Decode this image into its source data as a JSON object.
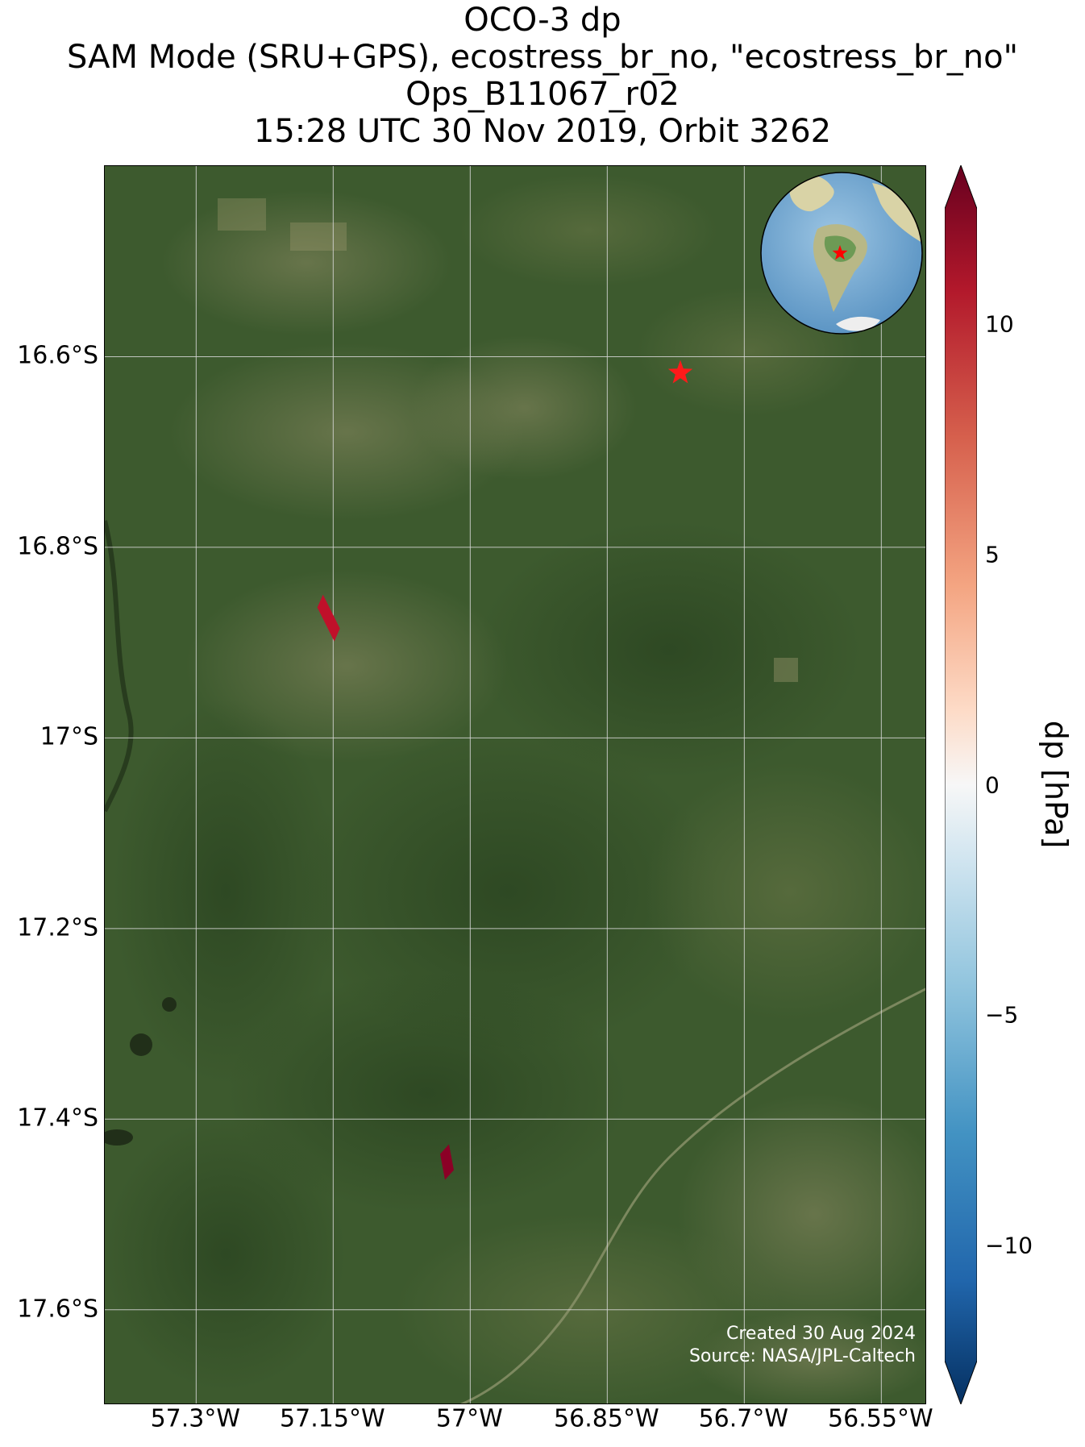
{
  "title": {
    "line1": "OCO-3 dp",
    "line2": "SAM Mode (SRU+GPS), ecostress_br_no, \"ecostress_br_no\"",
    "line3": "Ops_B11067_r02",
    "line4": "15:28 UTC 30 Nov 2019, Orbit 3262"
  },
  "map": {
    "lat_ticks": [
      "16.6°S",
      "16.8°S",
      "17°S",
      "17.2°S",
      "17.4°S",
      "17.6°S"
    ],
    "lon_ticks": [
      "57.3°W",
      "57.15°W",
      "57°W",
      "56.85°W",
      "56.7°W",
      "56.55°W"
    ],
    "lat_values": [
      -16.6,
      -16.8,
      -17.0,
      -17.2,
      -17.4,
      -17.6
    ],
    "lon_values": [
      -57.3,
      -57.15,
      -57.0,
      -56.85,
      -56.7,
      -56.55
    ],
    "extent": {
      "lon_min": -57.4,
      "lon_max": -56.5,
      "lat_min": -17.7,
      "lat_max": -16.4
    },
    "target": {
      "lon": -56.77,
      "lat": -16.617,
      "marker": "red-star"
    },
    "footprints": [
      {
        "lon": -57.155,
        "lat": -16.875,
        "color": "#c0102a"
      },
      {
        "lon": -57.025,
        "lat": -17.445,
        "color": "#8b0026"
      }
    ],
    "credit_line1": "Created 30 Aug 2024",
    "credit_line2": "Source: NASA/JPL-Caltech",
    "inset_globe": {
      "region": "South America",
      "marker": "red-star"
    }
  },
  "colorbar": {
    "label": "dp [hPa]",
    "ticks": [
      "10",
      "5",
      "0",
      "−5",
      "−10"
    ],
    "tick_values": [
      10,
      5,
      0,
      -5,
      -10
    ],
    "vmin": -12.5,
    "vmax": 12.5,
    "colormap": "RdBu_r",
    "extend": "both"
  },
  "colors": {
    "vegetation": "#3c5a2c",
    "grid": "#d8d8d8",
    "star": "#ff1a1a"
  }
}
